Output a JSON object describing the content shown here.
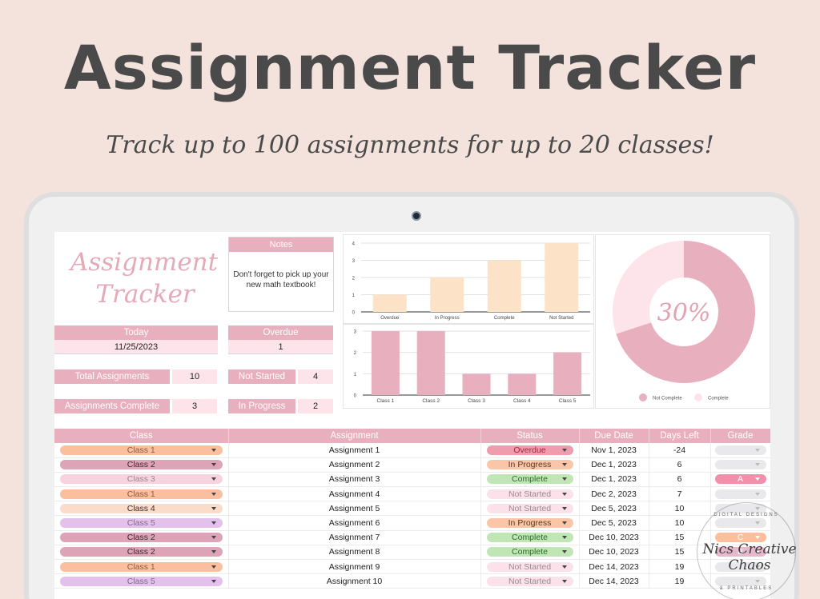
{
  "banner": {
    "title": "Assignment Tracker",
    "subtitle": "Track up to 100 assignments for up to 20 classes!"
  },
  "dashboard": {
    "logo_line1": "Assignment",
    "logo_line2": "Tracker",
    "notes": {
      "header": "Notes",
      "text": "Don't forget to pick up your new math textbook!"
    },
    "today": {
      "label": "Today",
      "value": "11/25/2023"
    },
    "overdue": {
      "label": "Overdue",
      "value": "1"
    },
    "total_assignments": {
      "label": "Total Assignments",
      "value": "10"
    },
    "not_started": {
      "label": "Not Started",
      "value": "4"
    },
    "assignments_complete": {
      "label": "Assignments Complete",
      "value": "3"
    },
    "in_progress": {
      "label": "In Progress",
      "value": "2"
    },
    "donut": {
      "center_label": "30%",
      "legend": [
        "Not Complete",
        "Complete"
      ]
    }
  },
  "chart_data": [
    {
      "type": "bar",
      "title": "",
      "categories": [
        "Overdue",
        "In Progress",
        "Complete",
        "Not Started"
      ],
      "values": [
        1,
        2,
        3,
        4
      ],
      "yticks": [
        0,
        1,
        2,
        3,
        4
      ],
      "ylim": [
        0,
        4
      ],
      "color": "#fce3c8",
      "grid": true
    },
    {
      "type": "bar",
      "title": "",
      "categories": [
        "Class 1",
        "Class 2",
        "Class 3",
        "Class 4",
        "Class 5"
      ],
      "values": [
        3,
        3,
        1,
        1,
        2
      ],
      "yticks": [
        0,
        1,
        2,
        3
      ],
      "ylim": [
        0,
        3
      ],
      "color": "#e8afbe",
      "grid": true
    },
    {
      "type": "pie",
      "title": "",
      "categories": [
        "Not Complete",
        "Complete"
      ],
      "values": [
        70,
        30
      ],
      "center_label": "30%",
      "colors": [
        "#e8afbe",
        "#fde4ea"
      ],
      "legend_position": "bottom"
    }
  ],
  "table": {
    "headers": [
      "Class",
      "Assignment",
      "Status",
      "Due Date",
      "Days Left",
      "Grade"
    ],
    "rows": [
      {
        "class": "Class 1",
        "assignment": "Assignment 1",
        "status": "Overdue",
        "due": "Nov 1, 2023",
        "days": "-24",
        "grade": ""
      },
      {
        "class": "Class 2",
        "assignment": "Assignment 2",
        "status": "In Progress",
        "due": "Dec 1, 2023",
        "days": "6",
        "grade": ""
      },
      {
        "class": "Class 3",
        "assignment": "Assignment 3",
        "status": "Complete",
        "due": "Dec 1, 2023",
        "days": "6",
        "grade": "A"
      },
      {
        "class": "Class 1",
        "assignment": "Assignment 4",
        "status": "Not Started",
        "due": "Dec 2, 2023",
        "days": "7",
        "grade": ""
      },
      {
        "class": "Class 4",
        "assignment": "Assignment 5",
        "status": "Not Started",
        "due": "Dec 5, 2023",
        "days": "10",
        "grade": ""
      },
      {
        "class": "Class 5",
        "assignment": "Assignment 6",
        "status": "In Progress",
        "due": "Dec 5, 2023",
        "days": "10",
        "grade": ""
      },
      {
        "class": "Class 2",
        "assignment": "Assignment 7",
        "status": "Complete",
        "due": "Dec 10, 2023",
        "days": "15",
        "grade": "C"
      },
      {
        "class": "Class 2",
        "assignment": "Assignment 8",
        "status": "Complete",
        "due": "Dec 10, 2023",
        "days": "15",
        "grade": "B"
      },
      {
        "class": "Class 1",
        "assignment": "Assignment 9",
        "status": "Not Started",
        "due": "Dec 14, 2023",
        "days": "19",
        "grade": ""
      },
      {
        "class": "Class 5",
        "assignment": "Assignment 10",
        "status": "Not Started",
        "due": "Dec 14, 2023",
        "days": "19",
        "grade": ""
      }
    ]
  },
  "colors": {
    "accent_pink": "#e8afbe",
    "light_pink": "#fde4ea",
    "peach_bar": "#fce3c8",
    "class_1": "#fbbf9e",
    "class_2": "#dfa3b7",
    "class_3": "#f7d3df",
    "class_4": "#fbdcca",
    "class_5": "#e3c1ec",
    "status_overdue": "#ee9cae",
    "status_in_progress": "#fbc6a8",
    "status_complete": "#bfe6b4",
    "status_not_started": "#fbe1ea",
    "grade_empty": "#e9e9ec",
    "grade_a": "#f28faa",
    "grade_c": "#fbbf9e",
    "grade_b": "#e7b8cb"
  },
  "watermark": {
    "top": "DIGITAL DESIGNS",
    "name": "Nics Creative Chaos",
    "bottom": "& PRINTABLES"
  }
}
